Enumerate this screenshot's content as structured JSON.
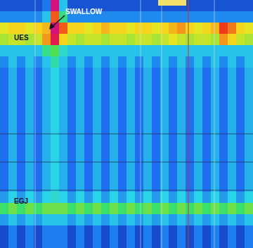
{
  "chart_data": {
    "type": "heatmap",
    "tick_labels": false,
    "annotations": [
      "SWALLOW",
      "UES",
      "EGJ"
    ],
    "zlim": [
      0,
      150
    ],
    "cells": [
      [
        12,
        12,
        12,
        12,
        12,
        20,
        150,
        40,
        12,
        12,
        12,
        12,
        12,
        12,
        12,
        12,
        12,
        12,
        12,
        12,
        12,
        12,
        12,
        12,
        12,
        12,
        12,
        12,
        12,
        12
      ],
      [
        25,
        25,
        25,
        25,
        25,
        40,
        120,
        60,
        25,
        25,
        25,
        25,
        25,
        25,
        25,
        25,
        25,
        25,
        25,
        25,
        25,
        25,
        25,
        25,
        25,
        25,
        25,
        25,
        25,
        25
      ],
      [
        95,
        100,
        100,
        95,
        100,
        105,
        150,
        120,
        100,
        100,
        95,
        100,
        105,
        100,
        100,
        95,
        100,
        100,
        95,
        100,
        105,
        110,
        100,
        95,
        100,
        105,
        125,
        115,
        100,
        95
      ],
      [
        85,
        90,
        90,
        85,
        90,
        110,
        140,
        100,
        90,
        85,
        90,
        90,
        85,
        90,
        90,
        85,
        90,
        90,
        85,
        90,
        95,
        90,
        85,
        90,
        90,
        85,
        110,
        100,
        90,
        85
      ],
      [
        40,
        40,
        40,
        40,
        40,
        60,
        70,
        50,
        40,
        40,
        40,
        40,
        40,
        40,
        40,
        40,
        40,
        40,
        40,
        40,
        40,
        40,
        40,
        40,
        40,
        40,
        40,
        40,
        40,
        40
      ],
      [
        25,
        40,
        25,
        40,
        25,
        40,
        55,
        40,
        25,
        40,
        25,
        40,
        25,
        40,
        25,
        40,
        25,
        40,
        25,
        40,
        25,
        40,
        25,
        40,
        25,
        40,
        25,
        40,
        25,
        40
      ],
      [
        18,
        35,
        18,
        35,
        18,
        35,
        45,
        35,
        18,
        35,
        18,
        35,
        18,
        35,
        18,
        35,
        18,
        35,
        18,
        35,
        18,
        35,
        18,
        35,
        18,
        35,
        18,
        35,
        18,
        35
      ],
      [
        18,
        35,
        18,
        35,
        18,
        35,
        45,
        35,
        18,
        35,
        18,
        35,
        18,
        35,
        18,
        35,
        18,
        35,
        18,
        35,
        18,
        35,
        18,
        35,
        18,
        35,
        18,
        35,
        18,
        35
      ],
      [
        18,
        35,
        18,
        35,
        18,
        35,
        45,
        35,
        18,
        35,
        18,
        35,
        18,
        35,
        18,
        35,
        18,
        35,
        18,
        35,
        18,
        35,
        18,
        35,
        18,
        35,
        18,
        35,
        18,
        35
      ],
      [
        18,
        35,
        18,
        35,
        18,
        35,
        45,
        35,
        18,
        35,
        18,
        35,
        18,
        35,
        18,
        35,
        18,
        35,
        18,
        35,
        18,
        35,
        18,
        35,
        18,
        35,
        18,
        35,
        18,
        35
      ],
      [
        18,
        35,
        18,
        35,
        18,
        35,
        45,
        35,
        18,
        35,
        18,
        35,
        18,
        35,
        18,
        35,
        18,
        35,
        18,
        35,
        18,
        35,
        18,
        35,
        18,
        35,
        18,
        35,
        18,
        35
      ],
      [
        18,
        35,
        18,
        35,
        18,
        35,
        45,
        35,
        18,
        35,
        18,
        35,
        18,
        35,
        18,
        35,
        18,
        35,
        18,
        35,
        18,
        35,
        18,
        35,
        18,
        35,
        18,
        35,
        18,
        35
      ],
      [
        18,
        35,
        18,
        35,
        18,
        35,
        45,
        35,
        18,
        35,
        18,
        35,
        18,
        35,
        18,
        35,
        18,
        35,
        18,
        35,
        18,
        35,
        18,
        35,
        18,
        35,
        18,
        35,
        18,
        35
      ],
      [
        18,
        35,
        18,
        35,
        18,
        35,
        45,
        35,
        18,
        35,
        18,
        35,
        18,
        35,
        18,
        35,
        18,
        35,
        18,
        35,
        18,
        35,
        18,
        35,
        18,
        35,
        18,
        35,
        18,
        35
      ],
      [
        18,
        35,
        18,
        35,
        18,
        35,
        45,
        35,
        18,
        35,
        18,
        35,
        18,
        35,
        18,
        35,
        18,
        35,
        18,
        35,
        18,
        35,
        18,
        35,
        18,
        35,
        18,
        35,
        18,
        35
      ],
      [
        18,
        35,
        18,
        35,
        18,
        35,
        45,
        35,
        18,
        35,
        18,
        35,
        18,
        35,
        18,
        35,
        18,
        35,
        18,
        35,
        18,
        35,
        18,
        35,
        18,
        35,
        18,
        35,
        18,
        35
      ],
      [
        18,
        35,
        18,
        35,
        18,
        35,
        45,
        35,
        18,
        35,
        18,
        35,
        18,
        35,
        18,
        35,
        18,
        35,
        18,
        35,
        18,
        35,
        18,
        35,
        18,
        35,
        18,
        35,
        18,
        35
      ],
      [
        30,
        45,
        30,
        45,
        30,
        45,
        50,
        45,
        30,
        45,
        30,
        45,
        30,
        45,
        30,
        45,
        30,
        45,
        30,
        45,
        30,
        45,
        30,
        45,
        30,
        45,
        30,
        45,
        30,
        45
      ],
      [
        65,
        75,
        65,
        75,
        65,
        75,
        75,
        75,
        65,
        75,
        65,
        75,
        65,
        75,
        65,
        75,
        65,
        75,
        65,
        75,
        65,
        75,
        65,
        75,
        65,
        75,
        65,
        75,
        65,
        75
      ],
      [
        30,
        40,
        30,
        40,
        30,
        40,
        40,
        40,
        30,
        40,
        30,
        40,
        30,
        40,
        30,
        40,
        30,
        40,
        30,
        40,
        30,
        40,
        30,
        40,
        30,
        40,
        30,
        40,
        30,
        40
      ],
      [
        10,
        22,
        10,
        22,
        10,
        22,
        22,
        22,
        10,
        22,
        10,
        22,
        10,
        22,
        10,
        22,
        10,
        22,
        10,
        22,
        10,
        22,
        10,
        22,
        10,
        22,
        10,
        22,
        10,
        22
      ],
      [
        10,
        22,
        10,
        22,
        10,
        22,
        22,
        22,
        10,
        22,
        10,
        22,
        10,
        22,
        10,
        22,
        10,
        22,
        10,
        22,
        10,
        22,
        10,
        22,
        10,
        22,
        10,
        22,
        10,
        22
      ]
    ]
  }
}
